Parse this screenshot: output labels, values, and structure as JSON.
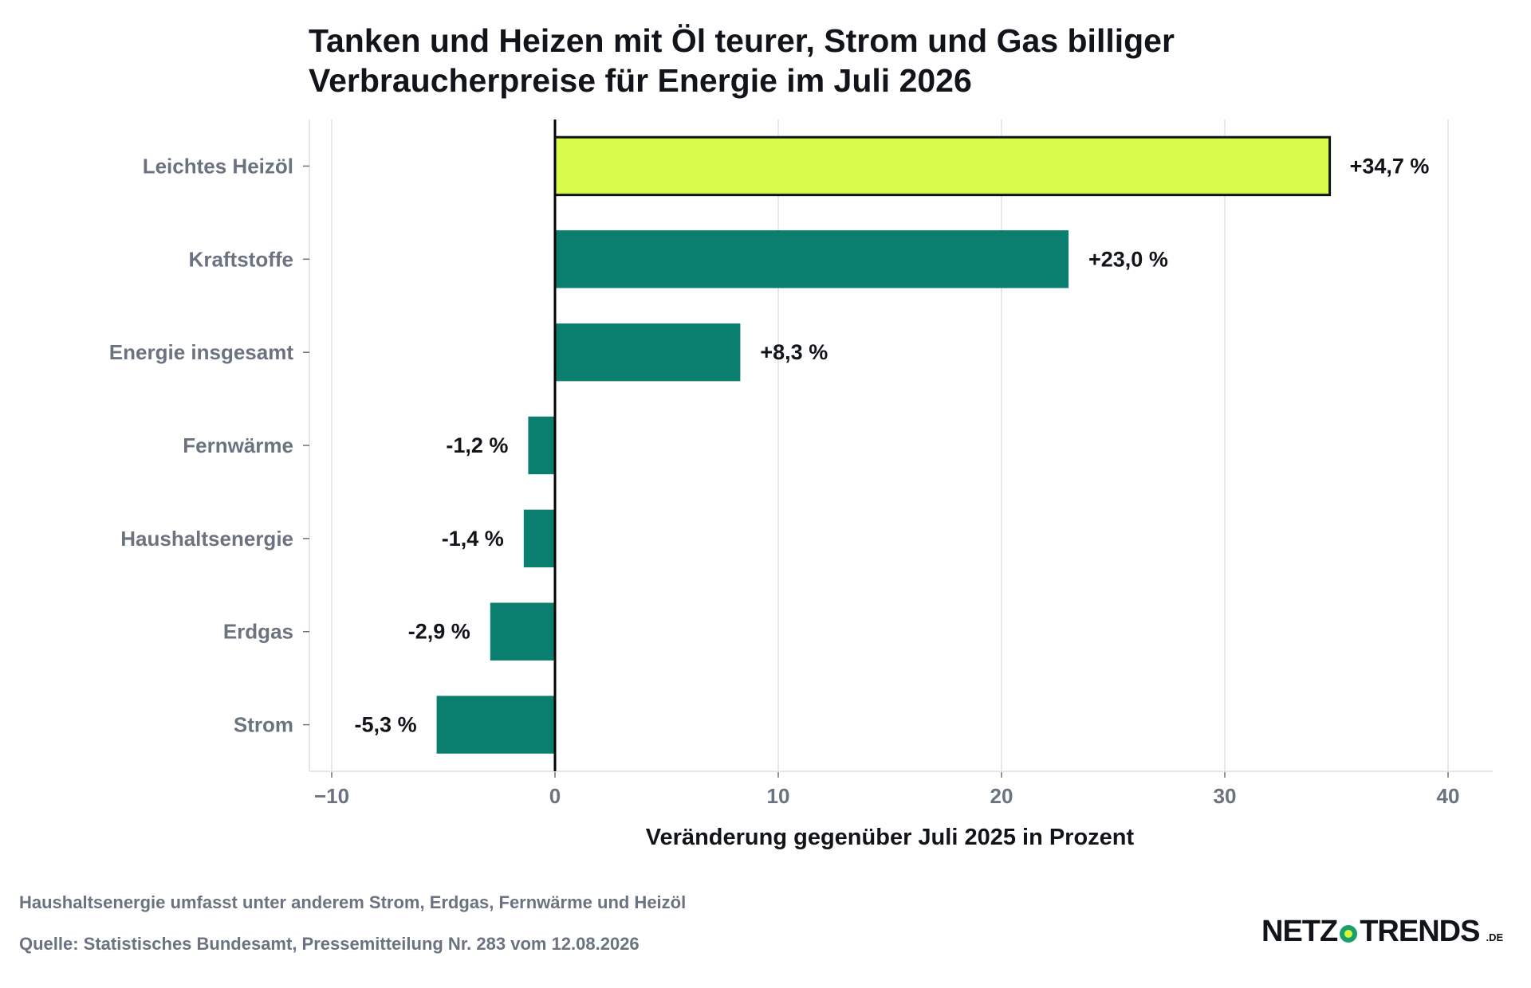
{
  "title_line1": "Tanken und Heizen mit Öl teurer, Strom und Gas billiger",
  "title_line2": "Verbraucherpreise für Energie im Juli 2026",
  "note": "Haushaltsenergie umfasst unter anderem Strom, Erdgas, Fernwärme und Heizöl",
  "source": "Quelle: Statistisches Bundesamt, Pressemitteilung Nr. 283 vom 12.08.2026",
  "logo": {
    "left": "NETZ",
    "icon": "logo-dot-icon",
    "right": "TRENDS",
    "tld": ".DE"
  },
  "colors": {
    "highlight": "#d9fb4c",
    "bar": "#0a7e6f",
    "label": "#111418",
    "category": "#6b7280",
    "grid": "#e5e7eb"
  },
  "chart_data": {
    "type": "bar",
    "orientation": "horizontal",
    "categories": [
      "Leichtes Heizöl",
      "Kraftstoffe",
      "Energie insgesamt",
      "Fernwärme",
      "Haushaltsenergie",
      "Erdgas",
      "Strom"
    ],
    "values": [
      34.7,
      23.0,
      8.3,
      -1.2,
      -1.4,
      -2.9,
      -5.3
    ],
    "data_labels": [
      "+34,7 %",
      "+23,0 %",
      "+8,3 %",
      "-1,2 %",
      "-1,4 %",
      "-2,9 %",
      "-5,3 %"
    ],
    "highlight_index": 0,
    "xlabel": "Veränderung gegenüber Juli 2025 in Prozent",
    "xlim": [
      -11,
      42
    ],
    "xticks": [
      -10,
      0,
      10,
      20,
      30,
      40
    ],
    "xtick_labels": [
      "−10",
      "0",
      "10",
      "20",
      "30",
      "40"
    ],
    "grid": "vertical"
  }
}
